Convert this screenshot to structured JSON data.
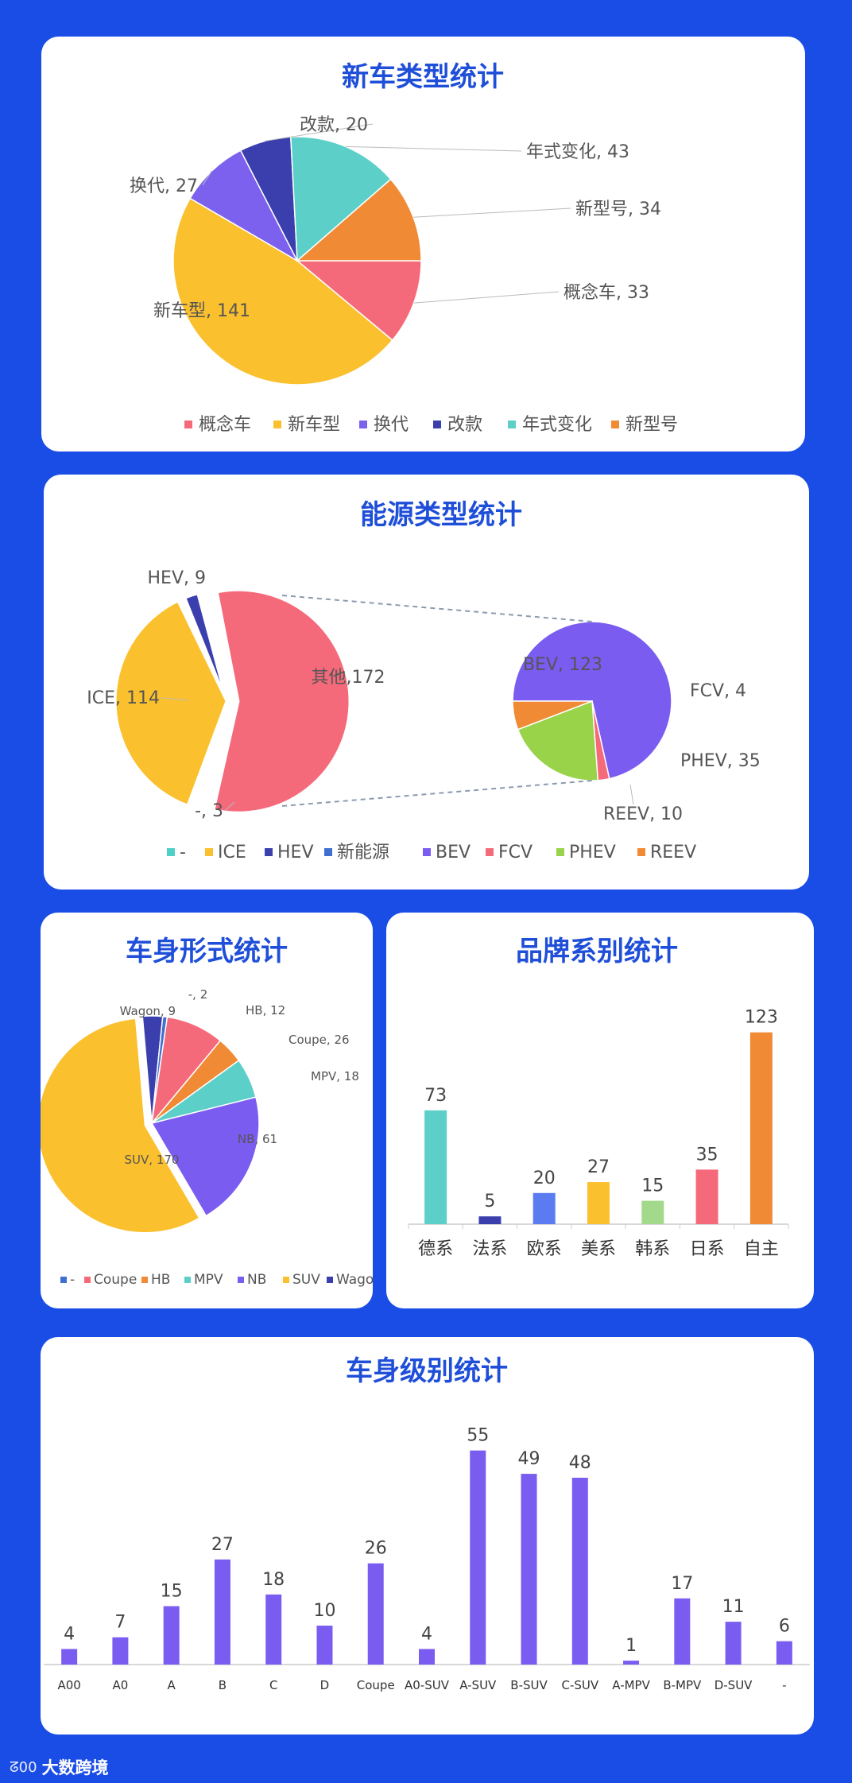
{
  "chart_data": [
    {
      "id": "new_car_type",
      "type": "pie",
      "title": "新车类型统计",
      "slices": [
        {
          "name": "概念车",
          "value": 33,
          "color": "#f56a7b"
        },
        {
          "name": "新车型",
          "value": 141,
          "color": "#fbc02d"
        },
        {
          "name": "换代",
          "value": 27,
          "color": "#7b61ee"
        },
        {
          "name": "改款",
          "value": 20,
          "color": "#3b3fad"
        },
        {
          "name": "年式变化",
          "value": 43,
          "color": "#5ccfc8"
        },
        {
          "name": "新型号",
          "value": 34,
          "color": "#f08a34"
        }
      ],
      "legend": "bottom"
    },
    {
      "id": "energy_type",
      "type": "pie",
      "title": "能源类型统计",
      "slices": [
        {
          "name": "-",
          "value": 3,
          "color": "#4dd0c8"
        },
        {
          "name": "ICE",
          "value": 114,
          "color": "#fbc02d"
        },
        {
          "name": "HEV",
          "value": 9,
          "color": "#3b3fad"
        },
        {
          "name": "新能源",
          "value": 172,
          "color": "#3f6fd0"
        },
        {
          "name": "BEV",
          "value": 123,
          "color": "#7b5cf0"
        },
        {
          "name": "FCV",
          "value": 4,
          "color": "#f56a7b"
        },
        {
          "name": "PHEV",
          "value": 35,
          "color": "#98d34a"
        },
        {
          "name": "REEV",
          "value": 10,
          "color": "#f08a34"
        }
      ],
      "main_pie_labels": [
        {
          "text": "HEV, 9"
        },
        {
          "text": "ICE, 114"
        },
        {
          "text": "其他,172"
        },
        {
          "text": "-, 3"
        }
      ],
      "sub_pie_labels": [
        {
          "text": "BEV, 123"
        },
        {
          "text": "FCV, 4"
        },
        {
          "text": "PHEV, 35"
        },
        {
          "text": "REEV, 10"
        }
      ],
      "other_slice_color": "#f56a7b",
      "legend": "bottom"
    },
    {
      "id": "body_style",
      "type": "pie",
      "title": "车身形式统计",
      "slices": [
        {
          "name": "-",
          "value": 2,
          "color": "#3f6fd0"
        },
        {
          "name": "Coupe",
          "value": 26,
          "color": "#f56a7b"
        },
        {
          "name": "HB",
          "value": 12,
          "color": "#f08a34"
        },
        {
          "name": "MPV",
          "value": 18,
          "color": "#5ccfc8"
        },
        {
          "name": "NB",
          "value": 61,
          "color": "#7b5cf0"
        },
        {
          "name": "SUV",
          "value": 170,
          "color": "#fbc02d"
        },
        {
          "name": "Wagon",
          "value": 9,
          "color": "#3b3fad"
        }
      ],
      "data_labels": [
        {
          "text": "-, 2"
        },
        {
          "text": "HB, 12"
        },
        {
          "text": "Coupe, 26"
        },
        {
          "text": "MPV, 18"
        },
        {
          "text": "NB, 61"
        },
        {
          "text": "SUV, 170"
        },
        {
          "text": "Wagon, 9"
        }
      ],
      "legend": "bottom"
    },
    {
      "id": "brand_origin",
      "type": "bar",
      "title": "品牌系别统计",
      "categories": [
        "德系",
        "法系",
        "欧系",
        "美系",
        "韩系",
        "日系",
        "自主"
      ],
      "values": [
        73,
        5,
        20,
        27,
        15,
        35,
        123
      ],
      "colors": [
        "#5ccfc8",
        "#3b3fad",
        "#5b7cf0",
        "#fbc02d",
        "#a3d98a",
        "#f56a7b",
        "#f08a34"
      ],
      "ylim": [
        0,
        130
      ]
    },
    {
      "id": "body_class",
      "type": "bar",
      "title": "车身级别统计",
      "categories": [
        "A00",
        "A0",
        "A",
        "B",
        "C",
        "D",
        "Coupe",
        "A0-SUV",
        "A-SUV",
        "B-SUV",
        "C-SUV",
        "A-MPV",
        "B-MPV",
        "D-SUV",
        "-"
      ],
      "values": [
        4,
        7,
        15,
        27,
        18,
        10,
        26,
        4,
        55,
        49,
        48,
        1,
        17,
        11,
        6
      ],
      "color": "#7b5cf0",
      "ylim": [
        0,
        58
      ]
    }
  ],
  "footer": {
    "logo_mark": "ᘔ00",
    "logo_text": "大数跨境"
  }
}
